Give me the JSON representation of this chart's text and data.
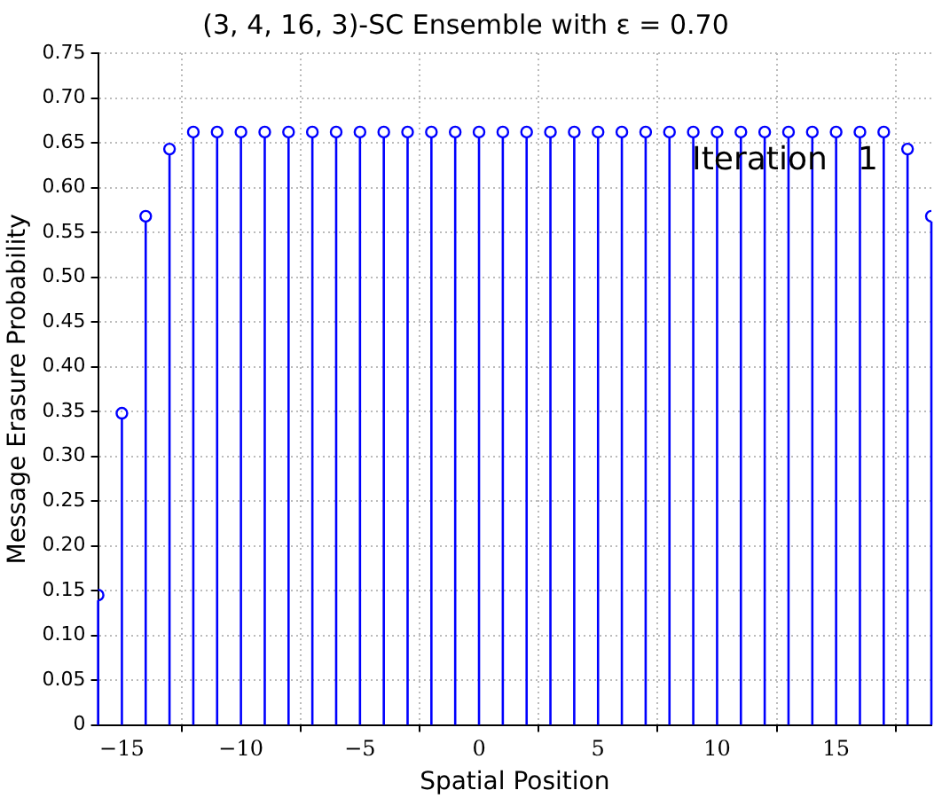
{
  "chart_data": {
    "type": "lollipop",
    "title": "(3, 4, 16, 3)-SC Ensemble with ε = 0.70",
    "xlabel": "Spatial Position",
    "ylabel": "Message Erasure Probability",
    "annotations": [
      "Iteration   1"
    ],
    "x": [
      -16,
      -15,
      -14,
      -13,
      -12,
      -11,
      -10,
      -9,
      -8,
      -7,
      -6,
      -5,
      -4,
      -3,
      -2,
      -1,
      0,
      1,
      2,
      3,
      4,
      5,
      6,
      7,
      8,
      9,
      10,
      11,
      12,
      13,
      14,
      15,
      16,
      17,
      18,
      19
    ],
    "values": [
      0.145,
      0.348,
      0.568,
      0.643,
      0.662,
      0.662,
      0.662,
      0.662,
      0.662,
      0.662,
      0.662,
      0.662,
      0.662,
      0.662,
      0.662,
      0.662,
      0.662,
      0.662,
      0.662,
      0.662,
      0.662,
      0.662,
      0.662,
      0.662,
      0.662,
      0.662,
      0.662,
      0.662,
      0.662,
      0.662,
      0.662,
      0.662,
      0.662,
      0.662,
      0.643,
      0.568
    ],
    "color": "#0000ff",
    "marker": "circle",
    "grid": true,
    "line_style": "dotted",
    "xlim": [
      -16,
      19
    ],
    "xticks": [
      -15,
      -10,
      -5,
      0,
      5,
      10,
      15
    ],
    "ylim": [
      0,
      0.75
    ],
    "yticks": [
      0,
      0.05,
      {
        "value": 0.1,
        "label": "0.10"
      },
      0.15,
      {
        "value": 0.2,
        "label": "0.20"
      },
      0.25,
      {
        "value": 0.3,
        "label": "0.30"
      },
      0.35,
      {
        "value": 0.4,
        "label": "0.40"
      },
      0.45,
      {
        "value": 0.5,
        "label": "0.50"
      },
      0.55,
      {
        "value": 0.6,
        "label": "0.60"
      },
      0.65,
      {
        "value": 0.7,
        "label": "0.70"
      },
      0.75
    ]
  }
}
